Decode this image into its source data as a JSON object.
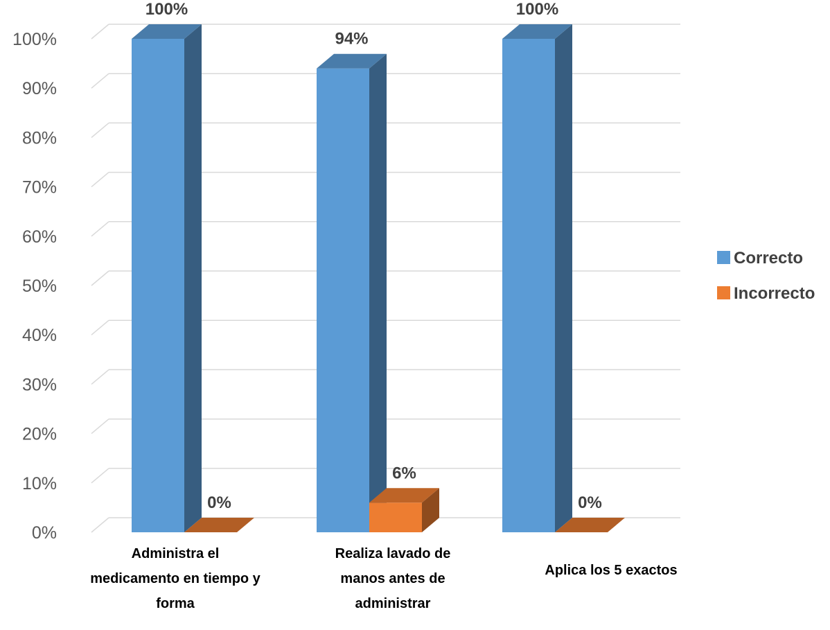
{
  "chart_data": {
    "type": "bar",
    "categories": [
      [
        "Administra el",
        "medicamento en tiempo y",
        "forma"
      ],
      [
        "Realiza lavado de",
        "manos antes  de",
        "administrar"
      ],
      [
        "Aplica los 5 exactos"
      ]
    ],
    "series": [
      {
        "name": "Correcto",
        "values": [
          100,
          94,
          100
        ],
        "labels": [
          "100%",
          "94%",
          "100%"
        ],
        "color": "#5B9BD5"
      },
      {
        "name": "Incorrecto",
        "values": [
          0,
          6,
          0
        ],
        "labels": [
          "0%",
          "6%",
          "0%"
        ],
        "color": "#ED7D31"
      }
    ],
    "yticks": [
      "0%",
      "10%",
      "20%",
      "30%",
      "40%",
      "50%",
      "60%",
      "70%",
      "80%",
      "90%",
      "100%"
    ],
    "ylim": [
      0,
      100
    ],
    "grid": true,
    "legend_position": "right",
    "style": "3d-clustered-column"
  }
}
